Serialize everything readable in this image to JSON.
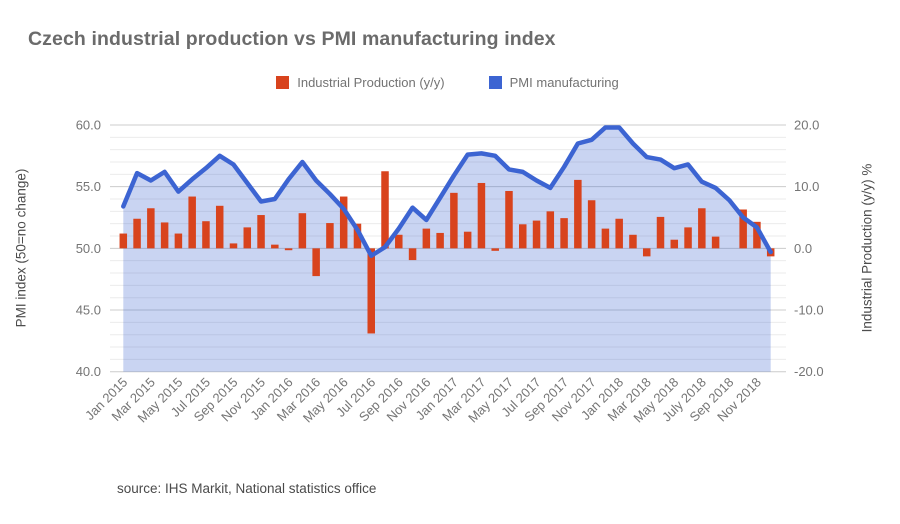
{
  "title": "Czech industrial production vs PMI manufacturing index",
  "source": "source: IHS Markit, National statistics office",
  "colors": {
    "bar": "#d8431d",
    "line": "#3c64d2",
    "area_fill": "rgba(61,100,210,0.28)",
    "grid_major": "#cccccc",
    "grid_minor": "#ebebeb",
    "tick_text": "#757575",
    "title_text": "#6b6b6b",
    "axis_title_text": "#4d4d4d"
  },
  "chart_data": {
    "type": "combo",
    "title": "Czech industrial production vs PMI manufacturing index",
    "grid": true,
    "legend_position": "top",
    "x": [
      "Jan 2015",
      "Feb 2015",
      "Mar 2015",
      "Apr 2015",
      "May 2015",
      "Jun 2015",
      "Jul 2015",
      "Aug 2015",
      "Sep 2015",
      "Oct 2015",
      "Nov 2015",
      "Dec 2015",
      "Jan 2016",
      "Feb 2016",
      "Mar 2016",
      "Apr 2016",
      "May 2016",
      "Jun 2016",
      "Jul 2016",
      "Aug 2016",
      "Sep 2016",
      "Oct 2016",
      "Nov 2016",
      "Dec 2016",
      "Jan 2017",
      "Feb 2017",
      "Mar 2017",
      "Apr 2017",
      "May 2017",
      "Jun 2017",
      "Jul 2017",
      "Aug 2017",
      "Sep 2017",
      "Oct 2017",
      "Nov 2017",
      "Dec 2017",
      "Jan 2018",
      "Feb 2018",
      "Mar 2018",
      "Apr 2018",
      "May 2018",
      "Jun 2018",
      "Jul 2018",
      "Aug 2018",
      "Sep 2018",
      "Oct 2018",
      "Nov 2018",
      "Dec 2018"
    ],
    "x_tick_labels": [
      "Jan 2015",
      "Mar 2015",
      "May 2015",
      "Jul 2015",
      "Sep 2015",
      "Nov 2015",
      "Jan 2016",
      "Mar 2016",
      "May 2016",
      "Jul 2016",
      "Sep 2016",
      "Nov 2016",
      "Jan 2017",
      "Mar 2017",
      "May 2017",
      "Jul 2017",
      "Sep 2017",
      "Nov 2017",
      "Jan 2018",
      "Mar 2018",
      "May 2018",
      "July 2018",
      "Sep 2018",
      "Nov 2018"
    ],
    "series": [
      {
        "name": "Industrial Production (y/y)",
        "type": "bar",
        "axis": "right",
        "color": "#d8431d",
        "values": [
          2.4,
          4.8,
          6.5,
          4.2,
          2.4,
          8.4,
          4.4,
          6.9,
          0.8,
          3.4,
          5.4,
          0.6,
          -0.3,
          5.7,
          -4.5,
          4.1,
          8.4,
          4.0,
          -13.8,
          12.5,
          2.2,
          -1.9,
          3.2,
          2.5,
          9.0,
          2.7,
          10.6,
          -0.4,
          9.3,
          3.9,
          4.5,
          6.0,
          4.9,
          11.1,
          7.8,
          3.2,
          4.8,
          2.2,
          -1.3,
          5.1,
          1.4,
          3.4,
          6.5,
          1.9,
          0.0,
          6.3,
          4.3,
          -1.3
        ]
      },
      {
        "name": "PMI manufacturing",
        "type": "area-line",
        "axis": "left",
        "color": "#3c64d2",
        "values": [
          53.4,
          56.1,
          55.5,
          56.2,
          54.6,
          55.6,
          56.5,
          57.5,
          56.8,
          55.3,
          53.8,
          54.0,
          55.6,
          57.0,
          55.5,
          54.4,
          53.2,
          51.5,
          49.4,
          50.1,
          51.6,
          53.3,
          52.3,
          54.1,
          55.9,
          57.6,
          57.7,
          57.5,
          56.4,
          56.2,
          55.5,
          54.9,
          56.6,
          58.5,
          58.8,
          59.8,
          59.8,
          58.5,
          57.4,
          57.2,
          56.5,
          56.8,
          55.4,
          54.9,
          53.9,
          52.5,
          51.7,
          49.7
        ]
      }
    ],
    "left_axis": {
      "label": "PMI index (50=no change)",
      "min": 40,
      "max": 60,
      "tick_values": [
        60,
        55,
        50,
        45,
        40
      ],
      "minor_step": 1
    },
    "right_axis": {
      "label": "Industrial Production (y/y) %",
      "min": -20,
      "max": 20,
      "tick_values": [
        20,
        10,
        0,
        -10,
        -20
      ]
    },
    "bar_baseline": 0
  }
}
